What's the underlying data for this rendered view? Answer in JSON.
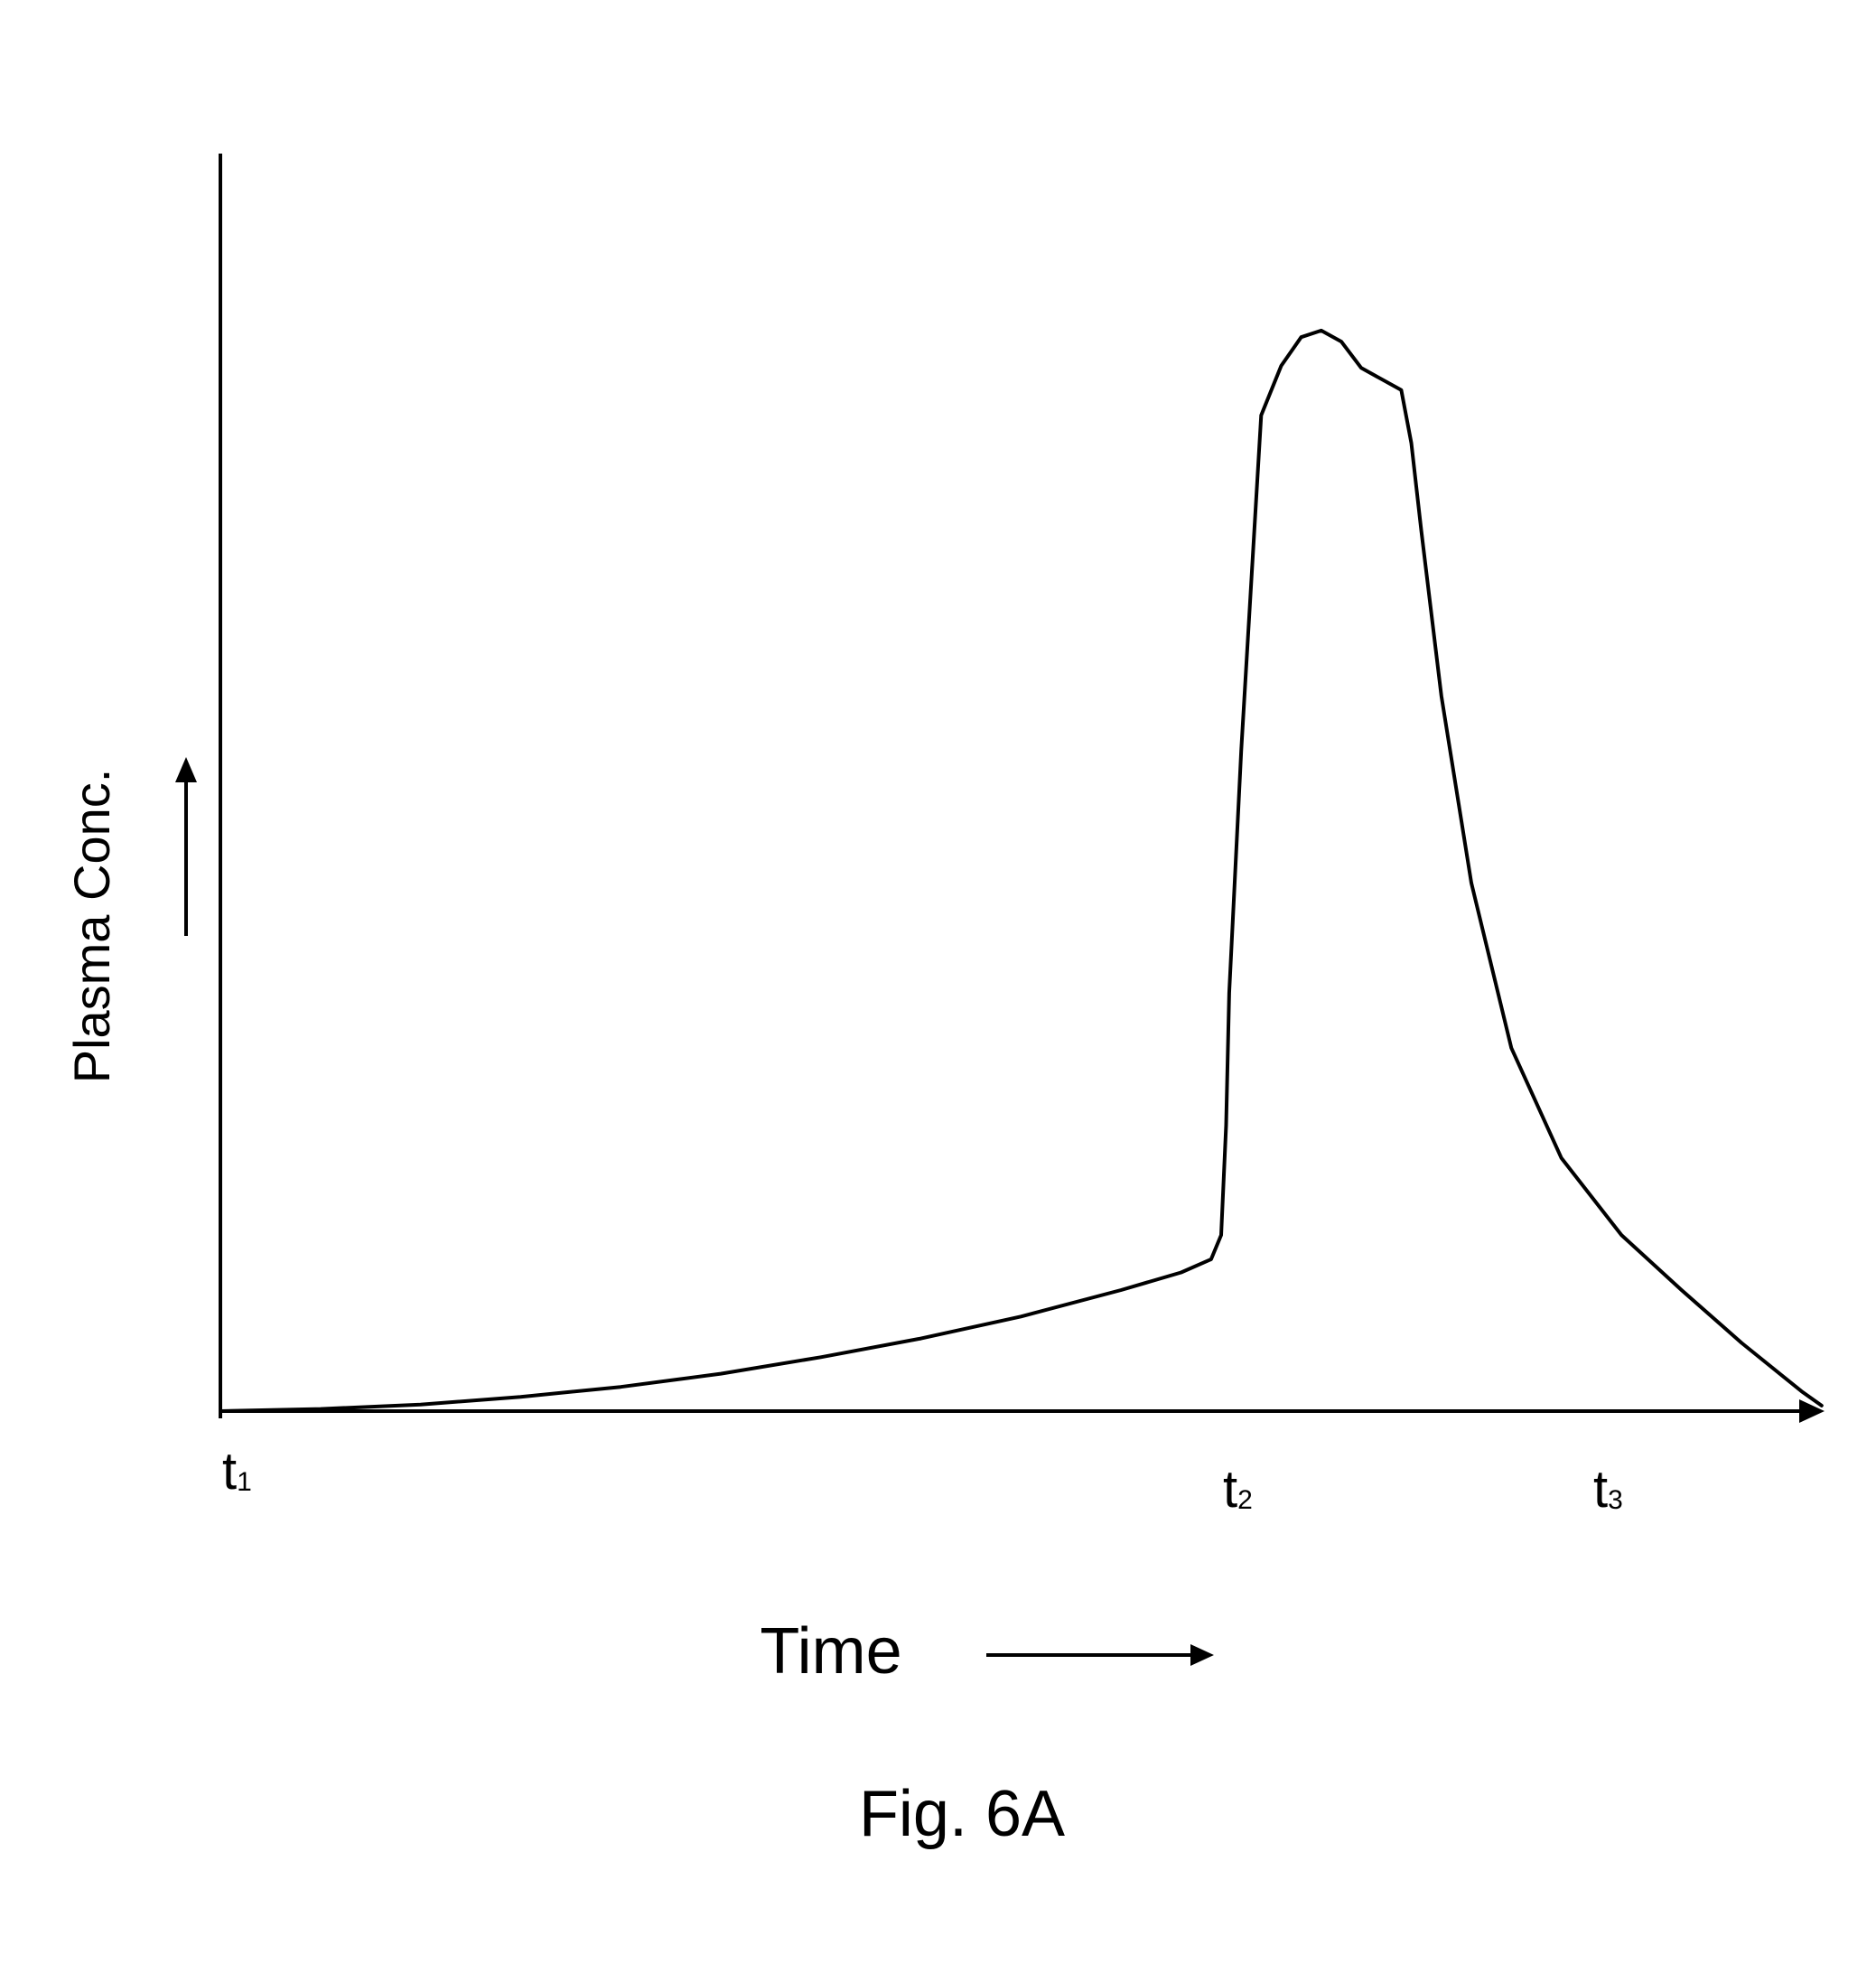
{
  "chart_data": {
    "type": "line",
    "caption": "Fig. 6A",
    "xlabel": "Time",
    "ylabel": "Plasma Conc.",
    "xlim": [
      0,
      1.65
    ],
    "ylim": [
      0,
      1.0
    ],
    "grid": false,
    "ticks": [
      {
        "id": "t1",
        "base": "t",
        "sub": "1",
        "x": 0.0
      },
      {
        "id": "t2",
        "base": "t",
        "sub": "2",
        "x": 1.0
      },
      {
        "id": "t3",
        "base": "t",
        "sub": "3",
        "x": 1.37
      }
    ],
    "series": [
      {
        "points": [
          [
            0.0,
            0.0
          ],
          [
            0.1,
            0.002
          ],
          [
            0.2,
            0.006
          ],
          [
            0.3,
            0.013
          ],
          [
            0.4,
            0.022
          ],
          [
            0.5,
            0.034
          ],
          [
            0.6,
            0.049
          ],
          [
            0.7,
            0.066
          ],
          [
            0.8,
            0.086
          ],
          [
            0.9,
            0.11
          ],
          [
            0.96,
            0.126
          ],
          [
            0.99,
            0.138
          ],
          [
            1.0,
            0.16
          ],
          [
            1.005,
            0.26
          ],
          [
            1.008,
            0.38
          ],
          [
            1.02,
            0.6
          ],
          [
            1.04,
            0.905
          ],
          [
            1.06,
            0.95
          ],
          [
            1.08,
            0.976
          ],
          [
            1.1,
            0.982
          ],
          [
            1.12,
            0.972
          ],
          [
            1.14,
            0.948
          ],
          [
            1.18,
            0.928
          ],
          [
            1.19,
            0.88
          ],
          [
            1.2,
            0.8
          ],
          [
            1.22,
            0.65
          ],
          [
            1.25,
            0.48
          ],
          [
            1.29,
            0.33
          ],
          [
            1.34,
            0.23
          ],
          [
            1.4,
            0.16
          ],
          [
            1.46,
            0.11
          ],
          [
            1.52,
            0.062
          ],
          [
            1.58,
            0.018
          ],
          [
            1.6,
            0.005
          ]
        ]
      }
    ]
  }
}
